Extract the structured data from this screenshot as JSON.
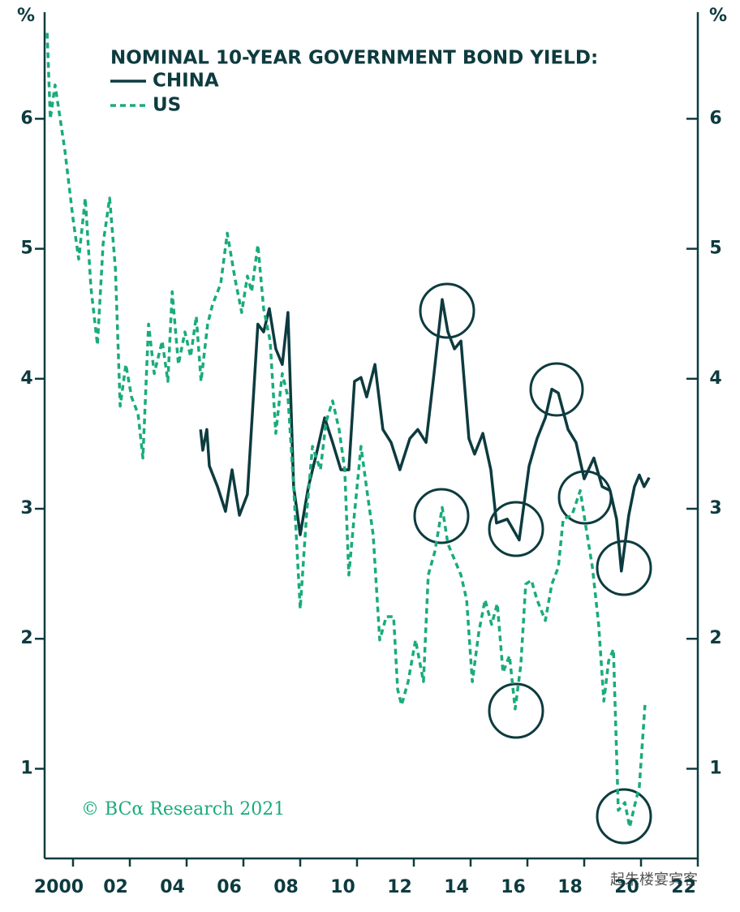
{
  "chart_data": {
    "type": "line",
    "title": "NOMINAL 10-YEAR GOVERNMENT BOND YIELD:",
    "y_label": "%",
    "y2_label": "%",
    "source": "© BCα Research 2021",
    "watermark": "起朱楼宴宾客",
    "xlim": [
      1999.5,
      2022.5
    ],
    "xticks": [
      {
        "value": 2000,
        "label": "2000"
      },
      {
        "value": 2002,
        "label": "02"
      },
      {
        "value": 2004,
        "label": "04"
      },
      {
        "value": 2006,
        "label": "06"
      },
      {
        "value": 2008,
        "label": "08"
      },
      {
        "value": 2010,
        "label": "10"
      },
      {
        "value": 2012,
        "label": "12"
      },
      {
        "value": 2014,
        "label": "14"
      },
      {
        "value": 2016,
        "label": "16"
      },
      {
        "value": 2018,
        "label": "18"
      },
      {
        "value": 2020,
        "label": "20"
      },
      {
        "value": 2022,
        "label": "22"
      }
    ],
    "ylim": [
      0.31,
      6.82
    ],
    "yticks": [
      1,
      2,
      3,
      4,
      5,
      6
    ],
    "series": [
      {
        "name": "CHINA",
        "color": "#0d3b3f",
        "dash": false,
        "x": [
          2004.99,
          2005.07,
          2005.21,
          2005.3,
          2005.59,
          2005.87,
          2006.1,
          2006.36,
          2006.64,
          2007.01,
          2007.21,
          2007.41,
          2007.64,
          2007.87,
          2008.07,
          2008.27,
          2008.5,
          2008.79,
          2009.07,
          2009.36,
          2009.64,
          2009.93,
          2010.21,
          2010.41,
          2010.64,
          2010.84,
          2011.13,
          2011.41,
          2011.7,
          2012.01,
          2012.36,
          2012.64,
          2012.93,
          2013.21,
          2013.5,
          2013.7,
          2013.93,
          2014.16,
          2014.44,
          2014.64,
          2014.93,
          2015.21,
          2015.41,
          2015.79,
          2016.21,
          2016.56,
          2016.84,
          2017.13,
          2017.36,
          2017.59,
          2017.93,
          2018.21,
          2018.5,
          2018.84,
          2019.13,
          2019.41,
          2019.64,
          2019.81,
          2020.07,
          2020.27,
          2020.44,
          2020.61,
          2020.79
        ],
        "values": [
          3.61,
          3.45,
          3.61,
          3.33,
          3.17,
          2.98,
          3.3,
          2.95,
          3.11,
          4.42,
          4.36,
          4.54,
          4.23,
          4.11,
          4.51,
          3.17,
          2.8,
          3.17,
          3.42,
          3.7,
          3.51,
          3.3,
          3.3,
          3.98,
          4.01,
          3.86,
          4.11,
          3.61,
          3.51,
          3.3,
          3.54,
          3.61,
          3.51,
          4.04,
          4.61,
          4.36,
          4.23,
          4.29,
          3.54,
          3.42,
          3.58,
          3.3,
          2.89,
          2.92,
          2.76,
          3.33,
          3.54,
          3.7,
          3.92,
          3.89,
          3.61,
          3.51,
          3.23,
          3.39,
          3.17,
          3.14,
          2.92,
          2.52,
          2.95,
          3.17,
          3.26,
          3.17,
          3.24
        ]
      },
      {
        "name": "US",
        "color": "#1aab7c",
        "dash": true,
        "x": [
          1999.59,
          1999.7,
          1999.87,
          2000.21,
          2000.5,
          2000.7,
          2000.93,
          2001.13,
          2001.36,
          2001.56,
          2001.79,
          2001.99,
          2002.16,
          2002.36,
          2002.56,
          2002.79,
          2002.96,
          2003.16,
          2003.36,
          2003.64,
          2003.84,
          2003.99,
          2004.21,
          2004.44,
          2004.64,
          2004.84,
          2005.01,
          2005.24,
          2005.41,
          2005.7,
          2005.93,
          2006.21,
          2006.44,
          2006.64,
          2006.79,
          2007.01,
          2007.21,
          2007.44,
          2007.64,
          2007.87,
          2008.07,
          2008.27,
          2008.5,
          2008.73,
          2008.93,
          2009.21,
          2009.41,
          2009.64,
          2009.87,
          2010.07,
          2010.21,
          2010.39,
          2010.64,
          2010.87,
          2011.07,
          2011.3,
          2011.53,
          2011.79,
          2011.93,
          2012.07,
          2012.3,
          2012.56,
          2012.84,
          2013.01,
          2013.24,
          2013.5,
          2013.7,
          2013.93,
          2014.16,
          2014.36,
          2014.56,
          2014.79,
          2015.01,
          2015.24,
          2015.44,
          2015.64,
          2015.87,
          2016.07,
          2016.27,
          2016.44,
          2016.64,
          2016.84,
          2017.13,
          2017.36,
          2017.59,
          2017.76,
          2018.07,
          2018.36,
          2018.56,
          2018.79,
          2019.01,
          2019.19,
          2019.36,
          2019.53,
          2019.7,
          2019.93,
          2020.1,
          2020.27,
          2020.44,
          2020.64
        ],
        "values": [
          6.66,
          6.0,
          6.26,
          5.76,
          5.23,
          4.92,
          5.39,
          4.7,
          4.26,
          5.04,
          5.39,
          4.85,
          3.79,
          4.11,
          3.86,
          3.73,
          3.39,
          4.42,
          4.04,
          4.29,
          3.98,
          4.67,
          4.11,
          4.36,
          4.17,
          4.48,
          3.98,
          4.42,
          4.57,
          4.73,
          5.12,
          4.76,
          4.51,
          4.79,
          4.67,
          5.03,
          4.54,
          4.29,
          3.58,
          4.04,
          3.86,
          3.17,
          2.23,
          2.98,
          3.48,
          3.3,
          3.67,
          3.83,
          3.61,
          3.3,
          2.49,
          2.92,
          3.48,
          3.11,
          2.8,
          1.99,
          2.17,
          2.17,
          1.61,
          1.49,
          1.67,
          1.99,
          1.67,
          2.49,
          2.67,
          3.01,
          2.73,
          2.61,
          2.49,
          2.3,
          1.67,
          2.05,
          2.3,
          2.11,
          2.27,
          1.74,
          1.87,
          1.46,
          1.8,
          2.42,
          2.45,
          2.3,
          2.14,
          2.42,
          2.55,
          2.92,
          2.95,
          3.14,
          2.86,
          2.55,
          2.11,
          1.52,
          1.83,
          1.92,
          0.68,
          0.74,
          0.55,
          0.71,
          0.86,
          1.49
        ]
      }
    ]
  }
}
